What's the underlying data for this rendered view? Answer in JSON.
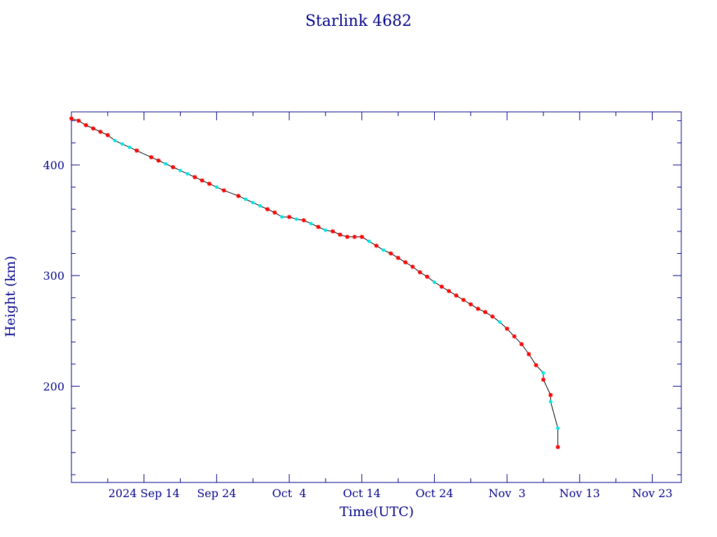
{
  "chart_data": {
    "type": "scatter",
    "title": "Starlink 4682",
    "xlabel": "Time(UTC)",
    "ylabel": "Height (km)",
    "x_tick_labels": [
      "2024 Sep 14",
      "Sep 24",
      "Oct  4",
      "Oct 14",
      "Oct 24",
      "Nov  3",
      "Nov 13",
      "Nov 23"
    ],
    "x_ticks": [
      "2024-09-14",
      "2024-09-24",
      "2024-10-04",
      "2024-10-14",
      "2024-10-24",
      "2024-11-03",
      "2024-11-13",
      "2024-11-23"
    ],
    "xlim": [
      "2024-09-04",
      "2024-11-27"
    ],
    "y_ticks": [
      200,
      300,
      400
    ],
    "ylim": [
      113,
      448
    ],
    "grid": false,
    "colors": {
      "axis": "#00008b",
      "line": "#000000",
      "marker_red": "#ff0000",
      "marker_cyan": "#00e5e5"
    },
    "series": [
      {
        "marker": "asterisk",
        "color": "#ff0000",
        "x": [
          "2024-09-04",
          "2024-09-05",
          "2024-09-06",
          "2024-09-07",
          "2024-09-08",
          "2024-09-09",
          "2024-09-13",
          "2024-09-15",
          "2024-09-16",
          "2024-09-18",
          "2024-09-21",
          "2024-09-22",
          "2024-09-23",
          "2024-09-25",
          "2024-09-27",
          "2024-10-01",
          "2024-10-02",
          "2024-10-04",
          "2024-10-06",
          "2024-10-08",
          "2024-10-10",
          "2024-10-11",
          "2024-10-12",
          "2024-10-13",
          "2024-10-14",
          "2024-10-16",
          "2024-10-18",
          "2024-10-19",
          "2024-10-20",
          "2024-10-21",
          "2024-10-22",
          "2024-10-23",
          "2024-10-25",
          "2024-10-26",
          "2024-10-27",
          "2024-10-28",
          "2024-10-29",
          "2024-10-30",
          "2024-10-31",
          "2024-11-01",
          "2024-11-03",
          "2024-11-04",
          "2024-11-05",
          "2024-11-06",
          "2024-11-07",
          "2024-11-08",
          "2024-11-09",
          "2024-11-10"
        ],
        "y": [
          442,
          440,
          436,
          433,
          430,
          427,
          413,
          407,
          404,
          398,
          389,
          386,
          383,
          377,
          372,
          360,
          357,
          353,
          350,
          344,
          340,
          337,
          335,
          335,
          335,
          327,
          320,
          316,
          312,
          308,
          303,
          299,
          290,
          286,
          282,
          278,
          274,
          270,
          267,
          263,
          252,
          245,
          238,
          229,
          219,
          206,
          192,
          145
        ]
      },
      {
        "marker": "dot",
        "color": "#00e5e5",
        "x": [
          "2024-09-10",
          "2024-09-11",
          "2024-09-12",
          "2024-09-17",
          "2024-09-19",
          "2024-09-20",
          "2024-09-24",
          "2024-09-28",
          "2024-09-29",
          "2024-09-30",
          "2024-10-03",
          "2024-10-05",
          "2024-10-07",
          "2024-10-09",
          "2024-10-15",
          "2024-10-17",
          "2024-10-24",
          "2024-11-02",
          "2024-11-08",
          "2024-11-09",
          "2024-11-10"
        ],
        "y": [
          422,
          419,
          416,
          401,
          395,
          392,
          380,
          369,
          366,
          363,
          353,
          351,
          347,
          341,
          331,
          323,
          294,
          258,
          212,
          186,
          162
        ]
      }
    ]
  }
}
